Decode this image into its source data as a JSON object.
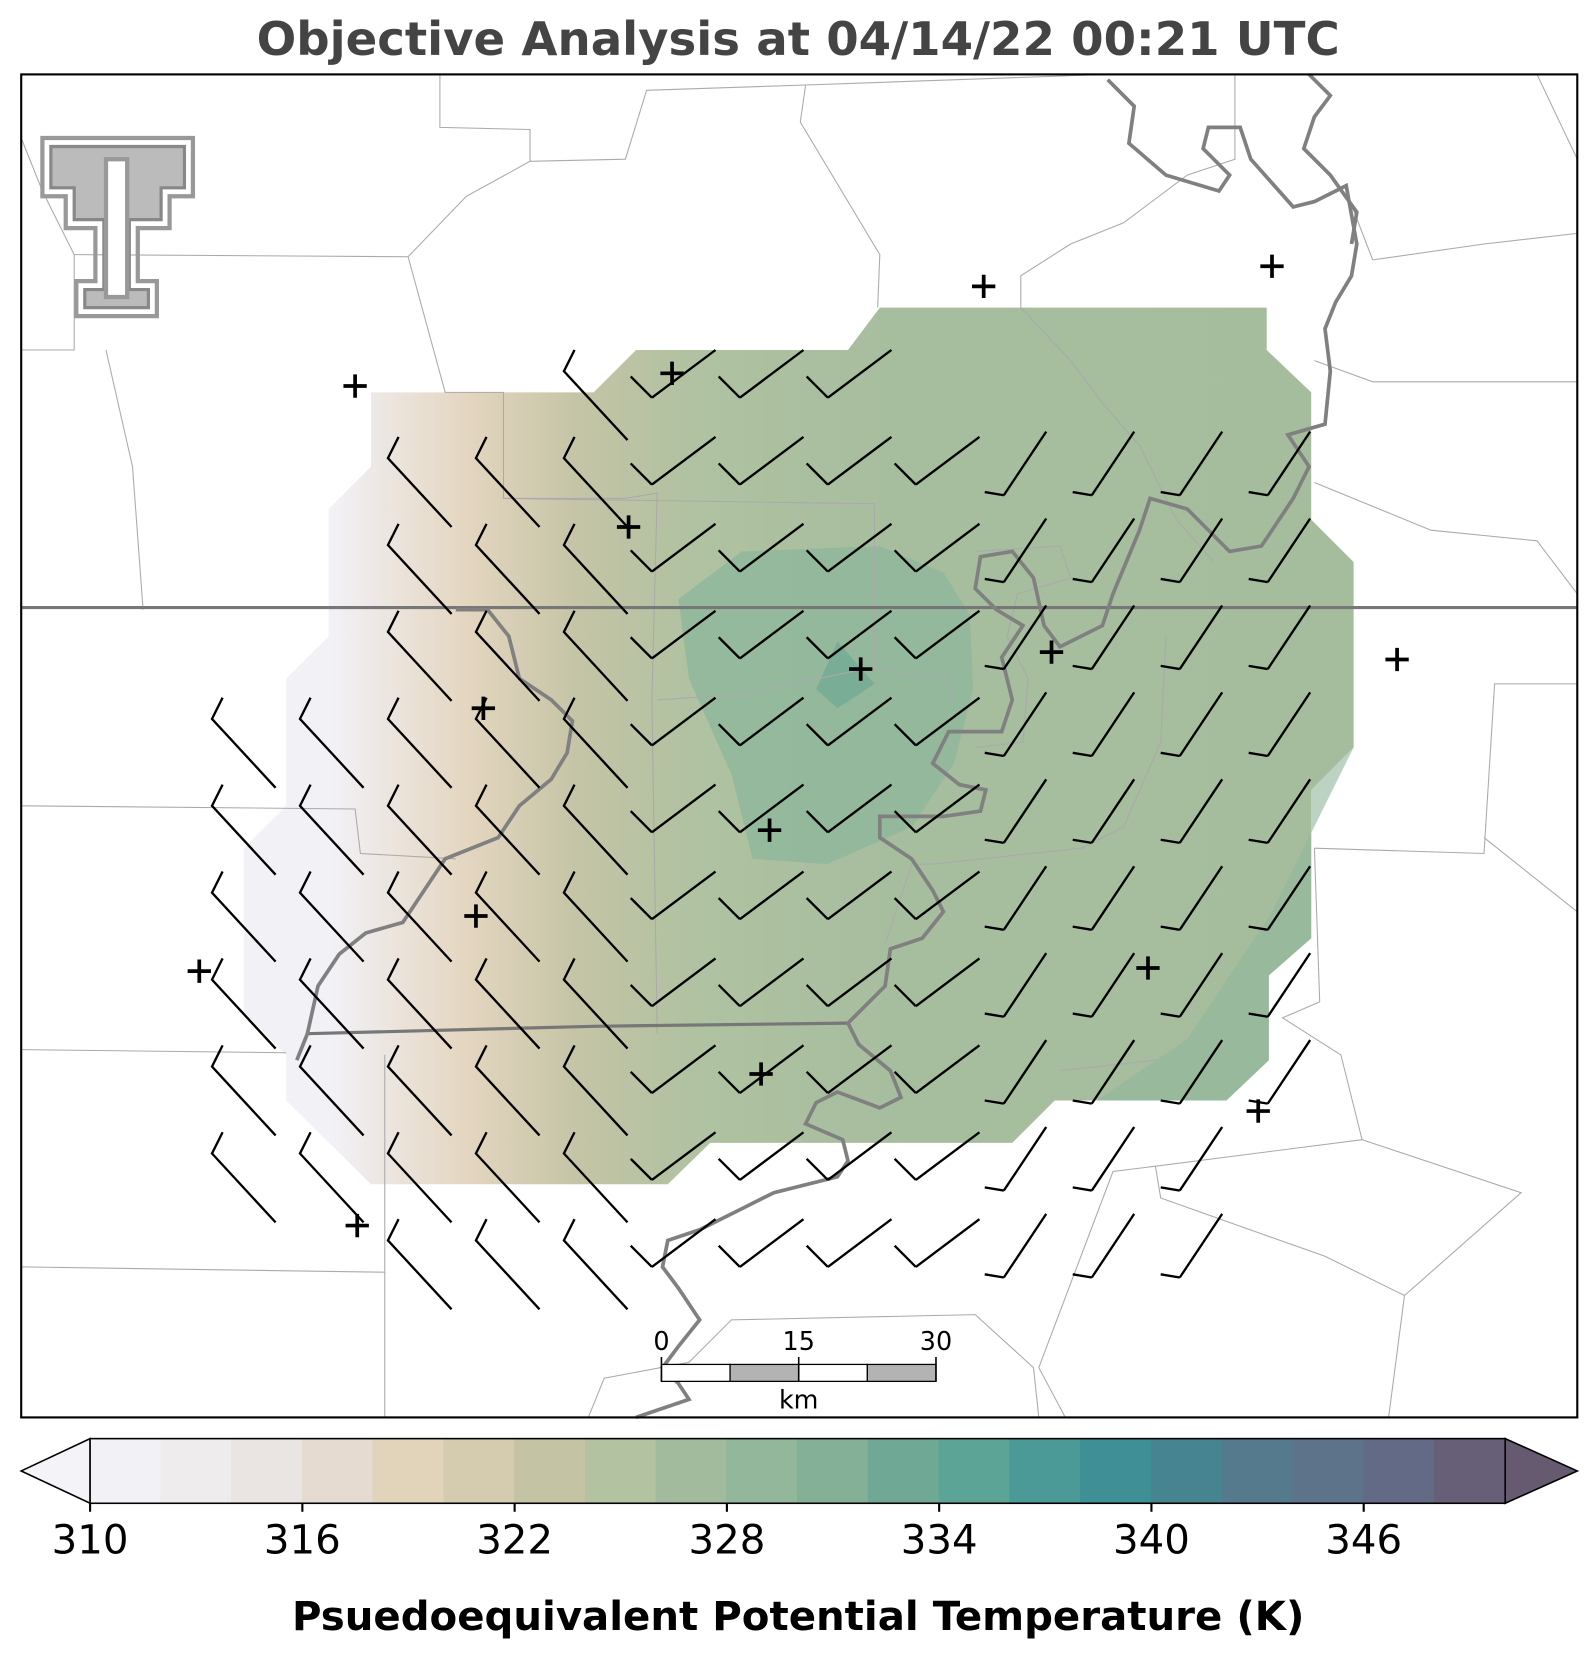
{
  "title": "Objective Analysis at 04/14/22 00:21 UTC",
  "colorbar": {
    "levels": [
      310,
      312,
      314,
      316,
      318,
      320,
      322,
      324,
      326,
      328,
      330,
      332,
      334,
      336,
      338,
      340,
      342,
      344,
      346,
      348,
      350
    ],
    "colors": [
      "#f2f1f6",
      "#efecee",
      "#eae4e2",
      "#e6dbd1",
      "#e2d3bb",
      "#d5ccb0",
      "#c4c4a5",
      "#b3c3a2",
      "#a3bb9d",
      "#92b79a",
      "#83b096",
      "#6fa894",
      "#5ca496",
      "#4b9a97",
      "#3f8f96",
      "#478491",
      "#567a8d",
      "#5c738a",
      "#636a85",
      "#675f78"
    ],
    "under_color": "#f4f3f8",
    "over_color": "#655a70",
    "ticks": [
      310,
      316,
      322,
      328,
      334,
      340,
      346
    ],
    "label": "Psuedoequivalent Potential Temperature (K)"
  },
  "scale_bar": {
    "ticks": [
      0,
      15,
      30
    ],
    "unit": "km"
  }
}
